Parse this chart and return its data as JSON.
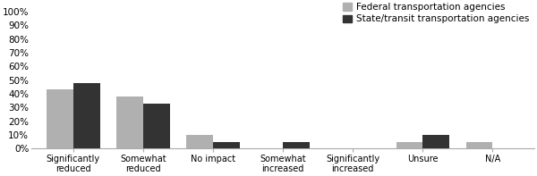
{
  "categories": [
    "Significantly\nreduced",
    "Somewhat\nreduced",
    "No impact",
    "Somewhat\nincreased",
    "Significantly\nincreased",
    "Unsure",
    "N/A"
  ],
  "federal": [
    0.43,
    0.38,
    0.1,
    0.0,
    0.0,
    0.05,
    0.05
  ],
  "state": [
    0.48,
    0.33,
    0.05,
    0.05,
    0.0,
    0.1,
    0.0
  ],
  "federal_color": "#b0b0b0",
  "state_color": "#333333",
  "federal_label": "Federal transportation agencies",
  "state_label": "State/transit transportation agencies",
  "yticks": [
    0.0,
    0.1,
    0.2,
    0.3,
    0.4,
    0.5,
    0.6,
    0.7,
    0.8,
    0.9,
    1.0
  ],
  "ytick_labels": [
    "0%",
    "10%",
    "20%",
    "30%",
    "40%",
    "50%",
    "60%",
    "70%",
    "80%",
    "90%",
    "100%"
  ],
  "ylim": [
    0,
    1.05
  ],
  "bar_width": 0.38,
  "background_color": "#ffffff",
  "legend_fontsize": 7.5,
  "tick_fontsize": 7.5,
  "category_fontsize": 7.0,
  "figwidth": 6.0,
  "figheight": 1.97
}
